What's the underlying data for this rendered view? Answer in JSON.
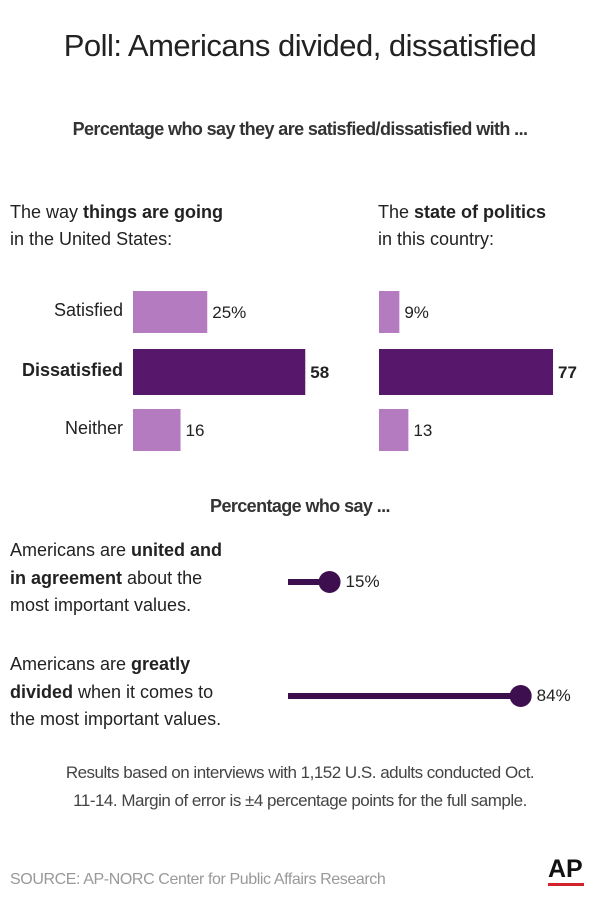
{
  "title": "Poll: Americans divided, dissatisfied",
  "subtitle": "Percentage who say they are satisfied/dissatisfied with ...",
  "chart_data": [
    {
      "type": "bar",
      "title_lines": [
        [
          {
            "text": "The way "
          },
          {
            "text": "things are going",
            "bold": true
          }
        ],
        [
          {
            "text": "in the United States:"
          }
        ]
      ],
      "categories": [
        "Satisfied",
        "Dissatisfied",
        "Neither"
      ],
      "category_bold": [
        false,
        true,
        false
      ],
      "values": [
        25,
        58,
        16
      ],
      "value_labels": [
        "25%",
        "58",
        "16"
      ],
      "value_label_bold": [
        false,
        true,
        false
      ],
      "colors": [
        "#b57bc1",
        "#57176a",
        "#b57bc1"
      ]
    },
    {
      "type": "bar",
      "title_lines": [
        [
          {
            "text": "The "
          },
          {
            "text": "state of politics",
            "bold": true
          }
        ],
        [
          {
            "text": "in this country:"
          }
        ]
      ],
      "values": [
        9,
        77,
        13
      ],
      "value_labels": [
        "9%",
        "77",
        "13"
      ],
      "value_label_bold": [
        false,
        true,
        false
      ],
      "colors": [
        "#b57bc1",
        "#57176a",
        "#b57bc1"
      ]
    },
    {
      "type": "lollipop",
      "title": "Percentage who say ...",
      "categories": [
        [
          [
            {
              "text": "Americans are "
            },
            {
              "text": "united and",
              "bold": true
            }
          ],
          [
            {
              "text": "in agreement",
              "bold": true
            },
            {
              "text": " about the"
            }
          ],
          [
            {
              "text": "most important values."
            }
          ]
        ],
        [
          [
            {
              "text": "Americans are "
            },
            {
              "text": "greatly",
              "bold": true
            }
          ],
          [
            {
              "text": "divided",
              "bold": true
            },
            {
              "text": " when it comes to"
            }
          ],
          [
            {
              "text": "the most important values."
            }
          ]
        ]
      ],
      "values": [
        15,
        84
      ],
      "value_labels": [
        "15%",
        "84%"
      ],
      "color": "#3d0f4f"
    }
  ],
  "note": [
    "Results based on interviews with 1,152 U.S. adults conducted Oct.",
    "11-14. Margin of error is ±4 percentage points for the full sample."
  ],
  "source": "SOURCE: AP-NORC Center for Public Affairs Research",
  "logo": "AP"
}
